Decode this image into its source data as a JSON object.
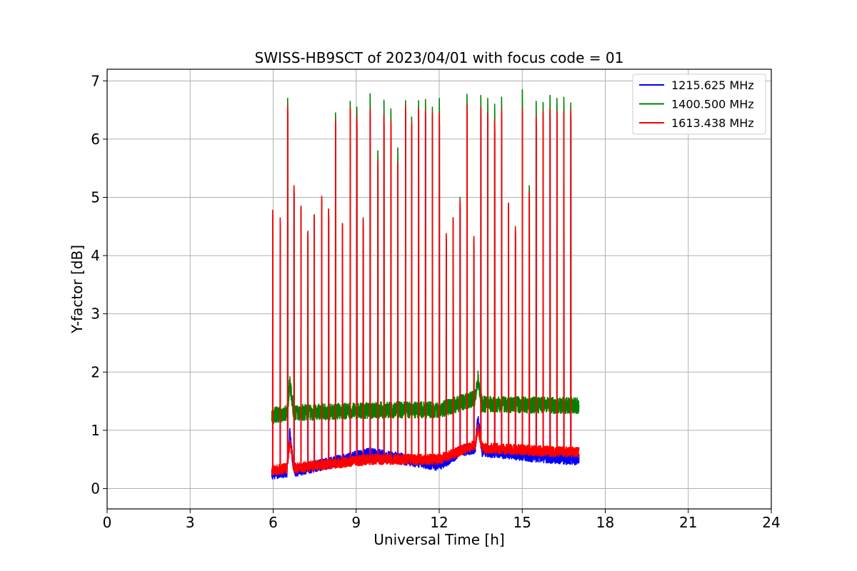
{
  "chart_data": {
    "type": "line",
    "title": "SWISS-HB9SCT of 2023/04/01 with focus code = 01",
    "xlabel": "Universal Time [h]",
    "ylabel": "Y-factor [dB]",
    "xlim": [
      0,
      24
    ],
    "ylim": [
      -0.35,
      7.2
    ],
    "xticks": [
      0,
      3,
      6,
      9,
      12,
      15,
      18,
      21,
      24
    ],
    "yticks": [
      0,
      1,
      2,
      3,
      4,
      5,
      6,
      7
    ],
    "grid": true,
    "legend_position": "top-right",
    "time_range": [
      5.95,
      17.05
    ],
    "colors": {
      "blue": "#0000ff",
      "green": "#008000",
      "red": "#ff0000"
    },
    "burst_times": [
      5.98,
      6.25,
      6.52,
      6.75,
      7.0,
      7.25,
      7.48,
      7.75,
      8.0,
      8.25,
      8.5,
      8.78,
      9.02,
      9.25,
      9.5,
      9.78,
      10.0,
      10.25,
      10.5,
      10.78,
      11.0,
      11.25,
      11.5,
      11.75,
      12.0,
      12.25,
      12.5,
      12.75,
      13.0,
      13.25,
      13.5,
      13.75,
      14.0,
      14.25,
      14.5,
      14.75,
      15.0,
      15.25,
      15.5,
      15.75,
      16.0,
      16.25,
      16.5,
      16.75
    ],
    "series": [
      {
        "name": "1215.625 MHz",
        "color": "#0000ff",
        "baseline": [
          [
            5.95,
            0.25
          ],
          [
            6.5,
            0.3
          ],
          [
            6.6,
            0.95
          ],
          [
            6.75,
            0.3
          ],
          [
            9.5,
            0.6
          ],
          [
            12.0,
            0.4
          ],
          [
            12.8,
            0.65
          ],
          [
            13.3,
            0.7
          ],
          [
            13.4,
            1.2
          ],
          [
            13.55,
            0.65
          ],
          [
            15.5,
            0.55
          ],
          [
            17.05,
            0.5
          ]
        ],
        "noise": 0.1,
        "peaks": [
          4.6,
          4.55,
          6.55,
          5.15,
          4.8,
          4.35,
          4.65,
          4.95,
          4.75,
          6.3,
          4.5,
          6.5,
          6.35,
          4.6,
          6.5,
          5.6,
          6.4,
          6.3,
          5.55,
          6.5,
          6.25,
          6.5,
          6.45,
          6.4,
          6.4,
          4.3,
          4.6,
          4.9,
          6.6,
          4.25,
          6.55,
          6.4,
          6.3,
          6.45,
          4.85,
          4.45,
          6.5,
          5.05,
          6.35,
          6.45,
          6.5,
          6.45,
          6.45,
          6.45
        ]
      },
      {
        "name": "1400.500 MHz",
        "color": "#008000",
        "baseline": [
          [
            5.95,
            1.25
          ],
          [
            6.5,
            1.3
          ],
          [
            6.6,
            1.8
          ],
          [
            6.75,
            1.3
          ],
          [
            10.0,
            1.35
          ],
          [
            12.0,
            1.35
          ],
          [
            13.3,
            1.55
          ],
          [
            13.4,
            1.9
          ],
          [
            13.55,
            1.45
          ],
          [
            17.05,
            1.42
          ]
        ],
        "noise": 0.14,
        "peaks": [
          4.7,
          4.6,
          6.7,
          5.2,
          4.85,
          4.4,
          4.7,
          5.0,
          4.8,
          6.45,
          4.55,
          6.65,
          6.55,
          4.65,
          6.78,
          5.8,
          6.67,
          6.52,
          5.85,
          6.66,
          6.38,
          6.66,
          6.68,
          6.55,
          6.7,
          4.35,
          4.65,
          5.0,
          6.77,
          4.3,
          6.75,
          6.7,
          6.6,
          6.72,
          4.9,
          4.5,
          6.85,
          5.2,
          6.65,
          6.63,
          6.75,
          6.7,
          6.72,
          6.62
        ]
      },
      {
        "name": "1613.438 MHz",
        "color": "#ff0000",
        "baseline": [
          [
            5.95,
            0.3
          ],
          [
            6.5,
            0.35
          ],
          [
            6.6,
            0.8
          ],
          [
            6.75,
            0.35
          ],
          [
            9.5,
            0.5
          ],
          [
            12.0,
            0.5
          ],
          [
            13.3,
            0.75
          ],
          [
            13.4,
            1.05
          ],
          [
            13.55,
            0.7
          ],
          [
            15.5,
            0.65
          ],
          [
            17.05,
            0.62
          ]
        ],
        "noise": 0.09,
        "peaks": [
          4.78,
          4.65,
          6.58,
          5.2,
          4.85,
          4.42,
          4.7,
          5.02,
          4.8,
          6.33,
          4.55,
          6.55,
          6.4,
          4.62,
          6.52,
          5.65,
          6.42,
          6.32,
          5.6,
          6.57,
          6.3,
          6.52,
          6.5,
          6.45,
          6.45,
          4.38,
          4.65,
          4.95,
          6.6,
          4.33,
          6.55,
          6.45,
          6.33,
          6.5,
          4.9,
          4.48,
          6.52,
          5.1,
          6.4,
          6.48,
          6.52,
          6.48,
          6.47,
          6.5
        ]
      }
    ]
  }
}
